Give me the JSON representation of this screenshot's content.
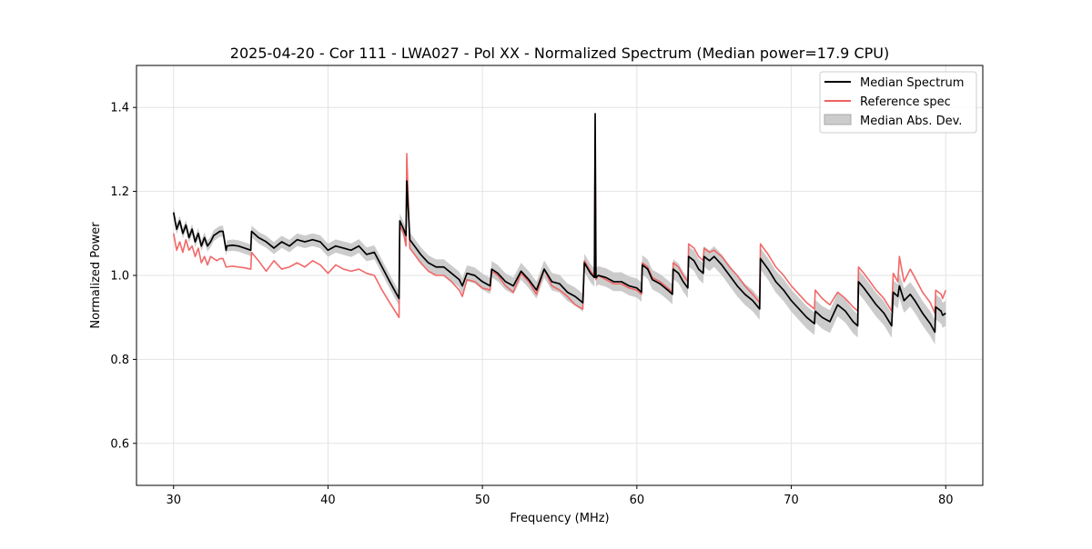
{
  "chart_data": {
    "type": "line",
    "title": "2025-04-20 - Cor 111 - LWA027 - Pol XX - Normalized Spectrum (Median power=17.9 CPU)",
    "xlabel": "Frequency (MHz)",
    "ylabel": "Normalized Power",
    "xlim": [
      27.6,
      82.4
    ],
    "ylim": [
      0.5,
      1.5
    ],
    "x_ticks": [
      30,
      40,
      50,
      60,
      70,
      80
    ],
    "y_ticks": [
      0.6,
      0.8,
      1.0,
      1.2,
      1.4
    ],
    "x_tick_labels": [
      "30",
      "40",
      "50",
      "60",
      "70",
      "80"
    ],
    "y_tick_labels": [
      "0.6",
      "0.8",
      "1.0",
      "1.2",
      "1.4"
    ],
    "grid": true,
    "legend_position": "top-right",
    "series": [
      {
        "name": "Median Spectrum",
        "color": "#000000",
        "x": [
          30.0,
          30.2,
          30.4,
          30.6,
          30.8,
          31.0,
          31.2,
          31.4,
          31.6,
          31.8,
          32.0,
          32.2,
          32.4,
          32.6,
          32.8,
          33.0,
          33.2,
          33.4,
          33.45,
          33.8,
          34.2,
          34.6,
          35.0,
          35.05,
          35.5,
          36.0,
          36.5,
          37.0,
          37.5,
          38.0,
          38.5,
          39.0,
          39.5,
          40.0,
          40.5,
          41.0,
          41.5,
          42.0,
          42.5,
          43.0,
          43.5,
          44.0,
          44.6,
          44.65,
          44.9,
          45.05,
          45.1,
          45.3,
          45.6,
          46.0,
          46.5,
          47.0,
          47.5,
          48.0,
          48.5,
          48.7,
          49.0,
          49.5,
          50.0,
          50.5,
          50.6,
          51.0,
          51.5,
          52.0,
          52.5,
          53.0,
          53.5,
          54.0,
          54.5,
          55.0,
          55.5,
          56.0,
          56.5,
          56.6,
          57.0,
          57.25,
          57.3,
          57.35,
          57.5,
          58.0,
          58.5,
          59.0,
          59.5,
          60.0,
          60.3,
          60.35,
          60.7,
          61.0,
          61.5,
          62.0,
          62.3,
          62.35,
          62.7,
          63.0,
          63.3,
          63.35,
          63.7,
          64.0,
          64.3,
          64.35,
          64.7,
          65.0,
          65.5,
          66.0,
          66.5,
          67.0,
          67.5,
          67.95,
          68.0,
          68.5,
          69.0,
          69.5,
          70.0,
          70.5,
          71.0,
          71.5,
          71.55,
          72.0,
          72.5,
          73.0,
          73.5,
          74.0,
          74.3,
          74.35,
          74.7,
          75.0,
          75.5,
          76.0,
          76.5,
          76.6,
          76.9,
          77.0,
          77.3,
          77.7,
          78.0,
          78.5,
          79.0,
          79.3,
          79.35,
          79.7,
          79.8,
          80.0
        ],
        "values": [
          1.15,
          1.11,
          1.13,
          1.1,
          1.12,
          1.09,
          1.11,
          1.08,
          1.1,
          1.07,
          1.09,
          1.07,
          1.08,
          1.095,
          1.1,
          1.105,
          1.105,
          1.06,
          1.07,
          1.072,
          1.07,
          1.065,
          1.06,
          1.105,
          1.09,
          1.08,
          1.065,
          1.08,
          1.07,
          1.085,
          1.08,
          1.085,
          1.08,
          1.06,
          1.07,
          1.065,
          1.06,
          1.07,
          1.05,
          1.055,
          1.02,
          0.985,
          0.945,
          1.13,
          1.11,
          1.095,
          1.225,
          1.085,
          1.07,
          1.05,
          1.03,
          1.02,
          1.02,
          1.005,
          0.99,
          0.975,
          1.005,
          1.0,
          0.985,
          0.975,
          1.015,
          1.005,
          0.985,
          0.975,
          1.01,
          0.99,
          0.965,
          1.015,
          0.985,
          0.98,
          0.96,
          0.95,
          0.935,
          1.03,
          1.005,
          0.995,
          1.385,
          0.995,
          1.0,
          0.995,
          0.985,
          0.985,
          0.975,
          0.97,
          0.96,
          1.025,
          1.015,
          0.99,
          0.98,
          0.965,
          0.955,
          1.015,
          1.005,
          0.985,
          0.97,
          1.045,
          1.035,
          1.015,
          1.005,
          1.045,
          1.035,
          1.045,
          1.025,
          1.0,
          0.975,
          0.955,
          0.94,
          0.92,
          1.04,
          1.015,
          0.985,
          0.965,
          0.94,
          0.92,
          0.9,
          0.885,
          0.915,
          0.9,
          0.89,
          0.93,
          0.915,
          0.89,
          0.88,
          0.985,
          0.97,
          0.955,
          0.93,
          0.91,
          0.88,
          0.96,
          0.95,
          0.975,
          0.94,
          0.955,
          0.94,
          0.91,
          0.885,
          0.865,
          0.925,
          0.915,
          0.905,
          0.91
        ]
      },
      {
        "name": "Reference spec",
        "color": "#f06060",
        "x": [
          30.0,
          30.2,
          30.4,
          30.6,
          30.8,
          31.0,
          31.2,
          31.4,
          31.6,
          31.8,
          32.0,
          32.2,
          32.4,
          32.6,
          32.8,
          33.0,
          33.2,
          33.4,
          33.45,
          33.8,
          34.2,
          34.6,
          35.0,
          35.05,
          35.5,
          36.0,
          36.5,
          37.0,
          37.5,
          38.0,
          38.5,
          39.0,
          39.5,
          40.0,
          40.5,
          41.0,
          41.5,
          42.0,
          42.5,
          43.0,
          43.5,
          44.0,
          44.6,
          44.65,
          44.9,
          45.05,
          45.1,
          45.3,
          45.6,
          46.0,
          46.5,
          47.0,
          47.5,
          48.0,
          48.5,
          48.7,
          49.0,
          49.5,
          50.0,
          50.5,
          50.6,
          51.0,
          51.5,
          52.0,
          52.5,
          53.0,
          53.5,
          54.0,
          54.5,
          55.0,
          55.5,
          56.0,
          56.5,
          56.6,
          57.0,
          57.25,
          57.3,
          57.35,
          57.5,
          58.0,
          58.5,
          59.0,
          59.5,
          60.0,
          60.3,
          60.35,
          60.7,
          61.0,
          61.5,
          62.0,
          62.3,
          62.35,
          62.7,
          63.0,
          63.3,
          63.35,
          63.7,
          64.0,
          64.3,
          64.35,
          64.7,
          65.0,
          65.5,
          66.0,
          66.5,
          67.0,
          67.5,
          67.95,
          68.0,
          68.5,
          69.0,
          69.5,
          70.0,
          70.5,
          71.0,
          71.5,
          71.55,
          72.0,
          72.5,
          73.0,
          73.5,
          74.0,
          74.3,
          74.35,
          74.7,
          75.0,
          75.5,
          76.0,
          76.5,
          76.6,
          76.9,
          77.0,
          77.3,
          77.7,
          78.0,
          78.5,
          79.0,
          79.3,
          79.35,
          79.7,
          79.8,
          80.0
        ],
        "values": [
          1.1,
          1.06,
          1.08,
          1.055,
          1.085,
          1.06,
          1.07,
          1.045,
          1.065,
          1.03,
          1.045,
          1.025,
          1.045,
          1.04,
          1.035,
          1.04,
          1.04,
          1.02,
          1.02,
          1.022,
          1.02,
          1.018,
          1.015,
          1.055,
          1.035,
          1.01,
          1.035,
          1.015,
          1.02,
          1.03,
          1.02,
          1.035,
          1.025,
          1.005,
          1.025,
          1.015,
          1.01,
          1.015,
          1.005,
          1.0,
          0.965,
          0.935,
          0.9,
          1.12,
          1.1,
          1.07,
          1.29,
          1.065,
          1.05,
          1.03,
          1.01,
          1.0,
          1.0,
          0.985,
          0.965,
          0.95,
          0.99,
          0.985,
          0.97,
          0.965,
          1.01,
          1.0,
          0.975,
          0.96,
          1.005,
          0.985,
          0.955,
          1.015,
          0.975,
          0.965,
          0.95,
          0.93,
          0.92,
          1.035,
          1.01,
          1.0,
          1.33,
          0.99,
          1.0,
          0.99,
          0.98,
          0.98,
          0.97,
          0.965,
          0.955,
          1.03,
          1.02,
          0.995,
          0.985,
          0.97,
          0.96,
          1.03,
          1.02,
          1.0,
          0.985,
          1.075,
          1.065,
          1.045,
          1.035,
          1.065,
          1.055,
          1.06,
          1.045,
          1.02,
          1.0,
          0.975,
          0.955,
          0.935,
          1.075,
          1.05,
          1.02,
          1.0,
          0.975,
          0.955,
          0.935,
          0.92,
          0.965,
          0.945,
          0.93,
          0.96,
          0.945,
          0.925,
          0.915,
          1.02,
          1.005,
          0.99,
          0.965,
          0.945,
          0.915,
          1.005,
          0.985,
          1.045,
          0.985,
          1.015,
          0.995,
          0.96,
          0.935,
          0.91,
          0.965,
          0.955,
          0.945,
          0.965
        ]
      }
    ],
    "band": {
      "name": "Median Abs. Dev.",
      "color": "#bfbfbf",
      "half_width_low_freq": 0.012,
      "half_width_high_freq": 0.03
    }
  }
}
